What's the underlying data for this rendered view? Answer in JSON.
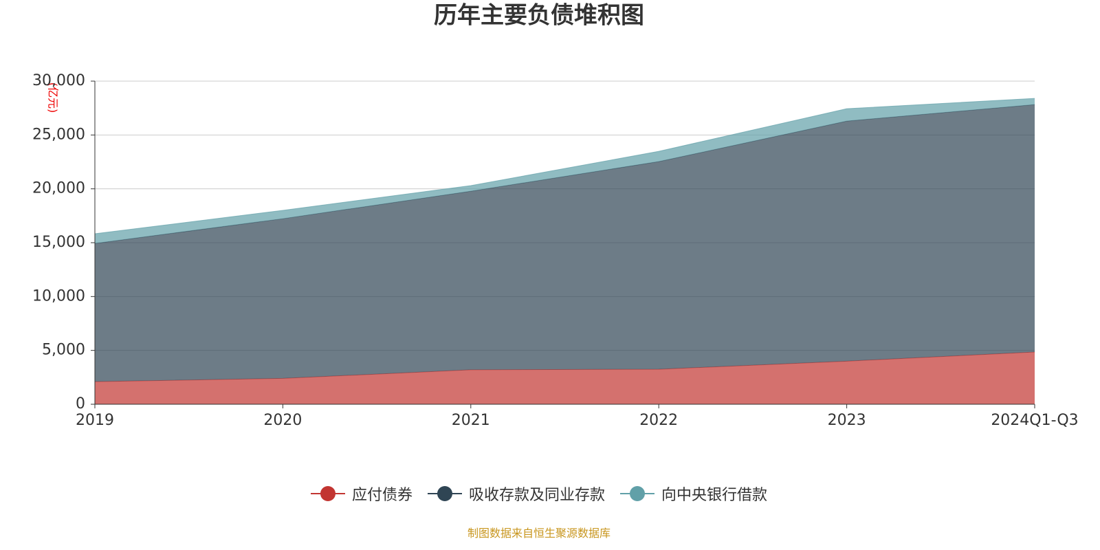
{
  "chart_data": {
    "type": "stacked-area",
    "title": "历年主要负债堆积图",
    "y_label": "(亿元)",
    "categories": [
      "2019",
      "2020",
      "2021",
      "2022",
      "2023",
      "2024Q1-Q3"
    ],
    "series": [
      {
        "name": "应付债券",
        "color": "#c23531",
        "values": [
          2100,
          2400,
          3200,
          3250,
          4000,
          4850
        ]
      },
      {
        "name": "吸收存款及同业存款",
        "color": "#2f4554",
        "values": [
          12830,
          14830,
          16580,
          19280,
          22290,
          22970
        ]
      },
      {
        "name": "向中央银行借款",
        "color": "#61a0a8",
        "values": [
          900,
          770,
          520,
          950,
          1150,
          580
        ]
      }
    ],
    "ylim": [
      0,
      30000
    ],
    "yticks": [
      0,
      {
        "value": 5000,
        "label": "5,000"
      },
      {
        "value": 10000,
        "label": "10,000"
      },
      {
        "value": 15000,
        "label": "15,000"
      },
      {
        "value": 20000,
        "label": "20,000"
      },
      {
        "value": 25000,
        "label": "25,000"
      },
      {
        "value": 30000,
        "label": "30,000"
      }
    ],
    "grid": true,
    "source": "制图数据来自恒生聚源数据库"
  }
}
